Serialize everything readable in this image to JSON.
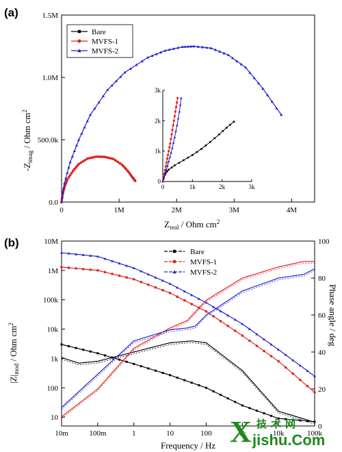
{
  "panels": {
    "a": "(a)",
    "b": "(b)"
  },
  "watermark": {
    "cjk": "技术网",
    "latin_x": "X",
    "latin_rest": "jishu.Com"
  },
  "chart_data": [
    {
      "type": "line",
      "panel": "(a)",
      "xlabel": "Z_real / Ohm cm^2",
      "ylabel": "-Z_imag / Ohm cm^2",
      "xlim": [
        0,
        4400000
      ],
      "ylim": [
        0,
        1500000
      ],
      "x_ticks": [
        0,
        1000000,
        2000000,
        3000000,
        4000000
      ],
      "x_tick_labels": [
        "0",
        "1M",
        "2M",
        "3M",
        "4M"
      ],
      "y_ticks": [
        0,
        500000,
        1000000,
        1500000
      ],
      "y_tick_labels": [
        "0.0",
        "500.0k",
        "1.0M",
        "1.5M"
      ],
      "legend": "top-left",
      "series": [
        {
          "name": "Bare",
          "color": "#000000",
          "marker": "square",
          "x": [
            0,
            1000,
            2000
          ],
          "y": [
            0,
            1000,
            2000
          ]
        },
        {
          "name": "MVFS-1",
          "color": "#e02020",
          "marker": "circle",
          "x": [
            0,
            20000,
            50000,
            100000,
            200000,
            300000,
            450000,
            600000,
            750000,
            900000,
            1050000,
            1150000,
            1230000,
            1280000
          ],
          "y": [
            0,
            70000,
            120000,
            180000,
            250000,
            305000,
            348000,
            364000,
            362000,
            345000,
            300000,
            250000,
            200000,
            170000
          ]
        },
        {
          "name": "MVFS-2",
          "color": "#2020d0",
          "marker": "triangle",
          "x": [
            0,
            50000,
            150000,
            300000,
            500000,
            800000,
            1100000,
            1500000,
            1800000,
            2100000,
            2300000,
            2600000,
            2900000,
            3200000,
            3500000,
            3820000
          ],
          "y": [
            0,
            150000,
            320000,
            500000,
            700000,
            900000,
            1040000,
            1160000,
            1215000,
            1245000,
            1250000,
            1235000,
            1180000,
            1080000,
            910000,
            700000
          ]
        }
      ],
      "inset": {
        "xlim": [
          0,
          3000
        ],
        "ylim": [
          0,
          3000
        ],
        "x_ticks": [
          0,
          1000,
          2000,
          3000
        ],
        "x_tick_labels": [
          "0",
          "1k",
          "2k",
          "3k"
        ],
        "y_ticks": [
          0,
          1000,
          2000,
          3000
        ],
        "y_tick_labels": [
          "0",
          "1k",
          "2k",
          "3k"
        ],
        "series": [
          {
            "name": "Bare",
            "color": "#000000",
            "x": [
              0,
              40,
              100,
              200,
              400,
              700,
              1000,
              1300,
              1600,
              1900,
              2150,
              2400
            ],
            "y": [
              0,
              150,
              280,
              390,
              530,
              700,
              870,
              1070,
              1300,
              1550,
              1770,
              1970
            ]
          },
          {
            "name": "MVFS-1",
            "color": "#e02020",
            "x": [
              0,
              50,
              100,
              150,
              200,
              250,
              300,
              350,
              400,
              450,
              500
            ],
            "y": [
              0,
              250,
              500,
              750,
              1000,
              1250,
              1550,
              1850,
              2150,
              2450,
              2750
            ]
          },
          {
            "name": "MVFS-2",
            "color": "#2020d0",
            "x": [
              0,
              80,
              160,
              240,
              320,
              400,
              480,
              560,
              620
            ],
            "y": [
              0,
              250,
              520,
              800,
              1100,
              1450,
              1850,
              2300,
              2750
            ]
          }
        ]
      }
    },
    {
      "type": "line",
      "panel": "(b)",
      "xlabel": "Frequency / Hz",
      "ylabel": "|Z|_mod / Ohm cm^2",
      "y2label": "Phase angle / deg",
      "x_scale": "log",
      "y_scale": "log",
      "xlim": [
        0.01,
        100000
      ],
      "ylim": [
        5,
        10000000
      ],
      "y2lim": [
        0,
        100
      ],
      "x_ticks": [
        0.01,
        0.1,
        1,
        10,
        100,
        1000,
        10000,
        100000
      ],
      "x_tick_labels": [
        "10m",
        "100m",
        "1",
        "10",
        "100",
        "1k",
        "10k",
        "100k"
      ],
      "y_ticks": [
        10,
        100,
        1000,
        10000,
        100000,
        1000000,
        10000000
      ],
      "y_tick_labels": [
        "10",
        "100",
        "1k",
        "10k",
        "100k",
        "1M",
        "10M"
      ],
      "y2_ticks": [
        0,
        20,
        40,
        60,
        80,
        100
      ],
      "y2_tick_labels": [
        "0",
        "20",
        "40",
        "60",
        "80",
        "100"
      ],
      "legend": "top-center",
      "series": [
        {
          "name": "Bare",
          "color": "#000000",
          "axis": "left",
          "marker": "square",
          "x": [
            0.01,
            0.1,
            1,
            10,
            100,
            1000,
            10000,
            100000
          ],
          "y": [
            3000,
            1500,
            650,
            270,
            100,
            25,
            9,
            7
          ]
        },
        {
          "name": "MVFS-1",
          "color": "#e02020",
          "axis": "left",
          "marker": "circle",
          "x": [
            0.01,
            0.1,
            1,
            10,
            100,
            1000,
            10000,
            100000
          ],
          "y": [
            1300000,
            1000000,
            500000,
            170000,
            40000,
            6000,
            800,
            70
          ]
        },
        {
          "name": "MVFS-2",
          "color": "#2020d0",
          "axis": "left",
          "marker": "triangle",
          "x": [
            0.01,
            0.1,
            1,
            10,
            100,
            1000,
            10000,
            100000
          ],
          "y": [
            4000000,
            3000000,
            1200000,
            350000,
            80000,
            15000,
            2000,
            250
          ]
        },
        {
          "name": "Bare phase",
          "color": "#000000",
          "axis": "right",
          "x": [
            0.01,
            0.03,
            0.1,
            1,
            10,
            40,
            100,
            1000,
            10000,
            100000
          ],
          "y": [
            37,
            34,
            35,
            40,
            45,
            46,
            45,
            30,
            8,
            2
          ]
        },
        {
          "name": "MVFS-1 phase",
          "color": "#e02020",
          "axis": "right",
          "x": [
            0.01,
            0.1,
            1,
            10,
            30,
            100,
            1000,
            10000,
            50000,
            100000
          ],
          "y": [
            5,
            20,
            42,
            53,
            57,
            68,
            80,
            86,
            89,
            89
          ]
        },
        {
          "name": "MVFS-2 phase",
          "color": "#2020d0",
          "axis": "right",
          "x": [
            0.01,
            0.1,
            1,
            10,
            30,
            50,
            100,
            1000,
            10000,
            50000,
            100000
          ],
          "y": [
            10,
            28,
            46,
            52,
            53,
            54,
            60,
            73,
            80,
            82,
            85
          ]
        }
      ]
    }
  ]
}
